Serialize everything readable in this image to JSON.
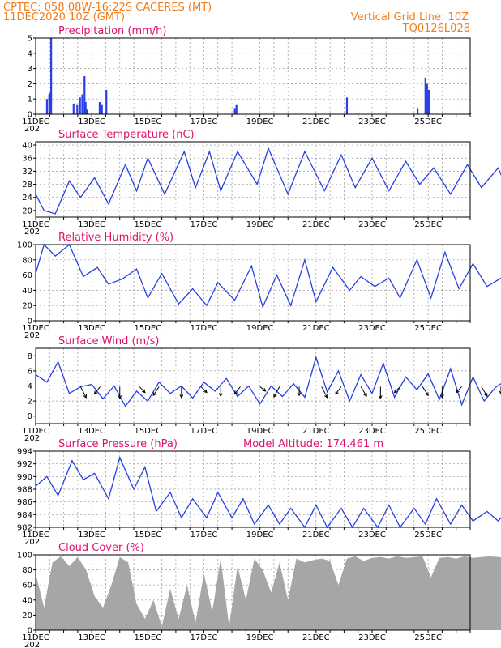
{
  "header": {
    "line1": "CPTEC:   058:08W-16:22S   CACERES (MT)",
    "line2": "11DEC2020  10Z (GMT)",
    "right1": "Vertical Grid Line: 10Z",
    "right2": "TQ0126L028"
  },
  "model_altitude": "Model Altitude: 174.461 m",
  "x_tick_labels": [
    "11DEC",
    "13DEC",
    "15DEC",
    "17DEC",
    "19DEC",
    "21DEC",
    "23DEC",
    "25DEC"
  ],
  "year_fragment": "202",
  "colors": {
    "header": "#f07d1a",
    "title": "#e0106a",
    "series": "#2540e0",
    "cloud": "#a6a6a6"
  },
  "chart_data": [
    {
      "type": "bar",
      "title": "Precipitation  (mm/h)",
      "ylim": [
        0,
        5
      ],
      "yticks": [
        "0",
        "1",
        "2",
        "3",
        "4",
        "5"
      ],
      "x_days": [
        0.4,
        0.48,
        0.52,
        0.55,
        1.35,
        1.48,
        1.58,
        1.66,
        1.74,
        1.78,
        1.82,
        2.28,
        2.36,
        2.52,
        7.1,
        7.16,
        11.1,
        13.62,
        13.9,
        13.96,
        14.02,
        15.5
      ],
      "values": [
        1.0,
        1.3,
        1.4,
        5.0,
        0.7,
        0.6,
        1.1,
        1.3,
        2.5,
        0.8,
        0.3,
        0.8,
        0.6,
        1.6,
        0.4,
        0.6,
        1.1,
        0.4,
        2.4,
        2.0,
        1.6,
        0.1
      ]
    },
    {
      "type": "line",
      "title": "Surface Temperature (nC)",
      "ylim": [
        18,
        41
      ],
      "yticks": [
        "20",
        "24",
        "28",
        "32",
        "36",
        "40"
      ],
      "x_days": [
        0.0,
        0.3,
        0.7,
        1.2,
        1.6,
        2.1,
        2.6,
        3.2,
        3.6,
        4.0,
        4.6,
        5.3,
        5.7,
        6.2,
        6.6,
        7.2,
        7.9,
        8.3,
        9.0,
        9.6,
        10.3,
        10.9,
        11.4,
        12.0,
        12.6,
        13.2,
        13.7,
        14.2,
        14.8,
        15.4,
        15.9,
        16.5,
        16.9,
        17.5,
        18.0,
        18.8,
        19.4,
        19.8,
        20.3,
        20.7,
        21.3,
        21.8,
        22.3,
        22.9,
        23.5,
        24.0,
        24.6,
        25.2,
        25.7,
        26.4,
        27.0,
        27.3
      ],
      "values": [
        25,
        20,
        19,
        29,
        24,
        30,
        22,
        34,
        26,
        36,
        25,
        38,
        27,
        38,
        26,
        38,
        28,
        39,
        25,
        38,
        26,
        37,
        27,
        36,
        26,
        35,
        28,
        33,
        25,
        34,
        27,
        33,
        25,
        34,
        24,
        35,
        26,
        32,
        24,
        31,
        24,
        31,
        25,
        33,
        24,
        31,
        25,
        35,
        26,
        32,
        25,
        31
      ]
    },
    {
      "type": "line",
      "title": "Relative Humidity  (%)",
      "ylim": [
        0,
        100
      ],
      "yticks": [
        "0",
        "20",
        "40",
        "60",
        "80",
        "100"
      ],
      "x_days": [
        0.0,
        0.3,
        0.7,
        1.2,
        1.7,
        2.2,
        2.6,
        3.1,
        3.6,
        4.0,
        4.5,
        5.1,
        5.6,
        6.1,
        6.5,
        7.1,
        7.7,
        8.1,
        8.6,
        9.1,
        9.6,
        10.0,
        10.6,
        11.2,
        11.6,
        12.1,
        12.6,
        13.0,
        13.6,
        14.1,
        14.6,
        15.1,
        15.6,
        16.1,
        16.7,
        17.3,
        17.7,
        18.2,
        18.7,
        19.2,
        19.8,
        20.4,
        20.9,
        21.5,
        22.1,
        22.6,
        23.1,
        23.7,
        24.3,
        24.9,
        25.4,
        25.9,
        26.6,
        27.2
      ],
      "values": [
        62,
        100,
        85,
        100,
        58,
        70,
        48,
        55,
        68,
        30,
        62,
        22,
        42,
        20,
        50,
        27,
        72,
        18,
        60,
        20,
        80,
        25,
        70,
        40,
        58,
        45,
        56,
        30,
        80,
        30,
        90,
        42,
        75,
        45,
        58,
        30,
        80,
        40,
        70,
        42,
        85,
        40,
        100,
        42,
        70,
        40,
        55,
        38,
        60,
        45,
        52,
        45,
        80,
        50
      ]
    },
    {
      "type": "line",
      "title": "Surface Wind  (m/s)",
      "ylim": [
        -1,
        9
      ],
      "yticks": [
        "0",
        "2",
        "4",
        "6",
        "8"
      ],
      "x_days": [
        0.0,
        0.4,
        0.8,
        1.2,
        1.6,
        2.0,
        2.4,
        2.8,
        3.2,
        3.6,
        4.0,
        4.4,
        4.8,
        5.2,
        5.6,
        6.0,
        6.4,
        6.8,
        7.2,
        7.6,
        8.0,
        8.4,
        8.8,
        9.2,
        9.6,
        10.0,
        10.4,
        10.8,
        11.2,
        11.6,
        12.0,
        12.4,
        12.8,
        13.2,
        13.6,
        14.0,
        14.4,
        14.8,
        15.2,
        15.6,
        16.0,
        16.4,
        16.8,
        17.2
      ],
      "values": [
        5.5,
        4.5,
        7.2,
        3.0,
        3.9,
        4.2,
        2.3,
        4.0,
        1.3,
        3.3,
        2.0,
        4.5,
        3.0,
        4.0,
        2.4,
        4.5,
        3.3,
        5.0,
        2.6,
        4.0,
        1.6,
        4.0,
        2.6,
        4.3,
        2.5,
        7.8,
        3.2,
        6.0,
        2.0,
        5.5,
        3.0,
        7.0,
        2.5,
        5.2,
        3.5,
        5.6,
        2.2,
        6.3,
        1.5,
        5.2,
        2.0,
        3.8,
        4.8,
        3.0
      ],
      "arrows_x_days": [
        1.6,
        2.3,
        3.0,
        3.7,
        4.4,
        5.2,
        5.9,
        6.6,
        7.3,
        8.0,
        8.7,
        9.4,
        10.2,
        10.9,
        11.6,
        12.3,
        13.0,
        13.8,
        14.5,
        15.2,
        15.9,
        16.6
      ],
      "arrows_u": [
        1,
        -1,
        0,
        1,
        -1,
        0,
        1,
        0,
        -1,
        1,
        -1,
        0,
        1,
        -1,
        1,
        0,
        -1,
        1,
        0,
        -1,
        1,
        0
      ],
      "arrows_v": [
        -1.5,
        -1,
        -1.6,
        -0.8,
        -1.2,
        -1.5,
        -0.8,
        -1.3,
        -1,
        -0.6,
        -1.4,
        -1.2,
        -1.5,
        -1,
        -1.3,
        -1.6,
        -0.8,
        -1.2,
        -1.5,
        -0.8,
        -1.3,
        -1
      ]
    },
    {
      "type": "line",
      "title": "Surface Pressure (hPa)",
      "ylim": [
        982,
        994
      ],
      "yticks": [
        "982",
        "984",
        "986",
        "988",
        "990",
        "992",
        "994"
      ],
      "x_days": [
        0.0,
        0.4,
        0.8,
        1.3,
        1.7,
        2.1,
        2.6,
        3.0,
        3.5,
        3.9,
        4.3,
        4.8,
        5.2,
        5.6,
        6.1,
        6.5,
        7.0,
        7.4,
        7.8,
        8.3,
        8.7,
        9.1,
        9.6,
        10.0,
        10.4,
        10.9,
        11.3,
        11.7,
        12.2,
        12.6,
        13.0,
        13.5,
        13.9,
        14.3,
        14.8,
        15.2,
        15.6,
        16.1,
        16.5,
        16.9,
        17.3
      ],
      "values": [
        988.5,
        990,
        987,
        992.5,
        989.5,
        990.5,
        986.5,
        993,
        988,
        991.5,
        984.5,
        987.5,
        983.5,
        986.5,
        983.5,
        987.5,
        983.5,
        986.5,
        982.5,
        985.5,
        982.5,
        985,
        982,
        985.5,
        982,
        985,
        982,
        985,
        982,
        985.5,
        982,
        985,
        982.5,
        986.5,
        982.5,
        985.5,
        983,
        984.5,
        983,
        985,
        983.5
      ]
    },
    {
      "type": "area",
      "title": "Cloud Cover  (%)",
      "ylim": [
        0,
        100
      ],
      "yticks": [
        "0",
        "20",
        "40",
        "60",
        "80",
        "100"
      ],
      "x_days": [
        0.0,
        0.3,
        0.6,
        0.9,
        1.2,
        1.5,
        1.8,
        2.1,
        2.4,
        2.7,
        3.0,
        3.3,
        3.6,
        3.9,
        4.2,
        4.5,
        4.8,
        5.1,
        5.4,
        5.7,
        6.0,
        6.3,
        6.6,
        6.9,
        7.2,
        7.5,
        7.8,
        8.1,
        8.4,
        8.7,
        9.0,
        9.3,
        9.6,
        9.9,
        10.2,
        10.5,
        10.8,
        11.1,
        11.4,
        11.7,
        12.0,
        12.3,
        12.6,
        12.9,
        13.2,
        13.5,
        13.8,
        14.1,
        14.4,
        14.7,
        15.0,
        15.3,
        15.6,
        15.9,
        16.2,
        16.5,
        16.8,
        17.1,
        17.3
      ],
      "values": [
        75,
        30,
        90,
        98,
        85,
        97,
        80,
        45,
        30,
        60,
        97,
        90,
        35,
        15,
        40,
        5,
        55,
        15,
        60,
        10,
        75,
        25,
        95,
        5,
        85,
        40,
        95,
        80,
        50,
        90,
        40,
        95,
        90,
        93,
        95,
        92,
        60,
        95,
        98,
        92,
        96,
        97,
        95,
        98,
        96,
        97,
        98,
        70,
        96,
        97,
        95,
        98,
        96,
        97,
        98,
        97,
        96,
        97,
        95
      ]
    }
  ]
}
